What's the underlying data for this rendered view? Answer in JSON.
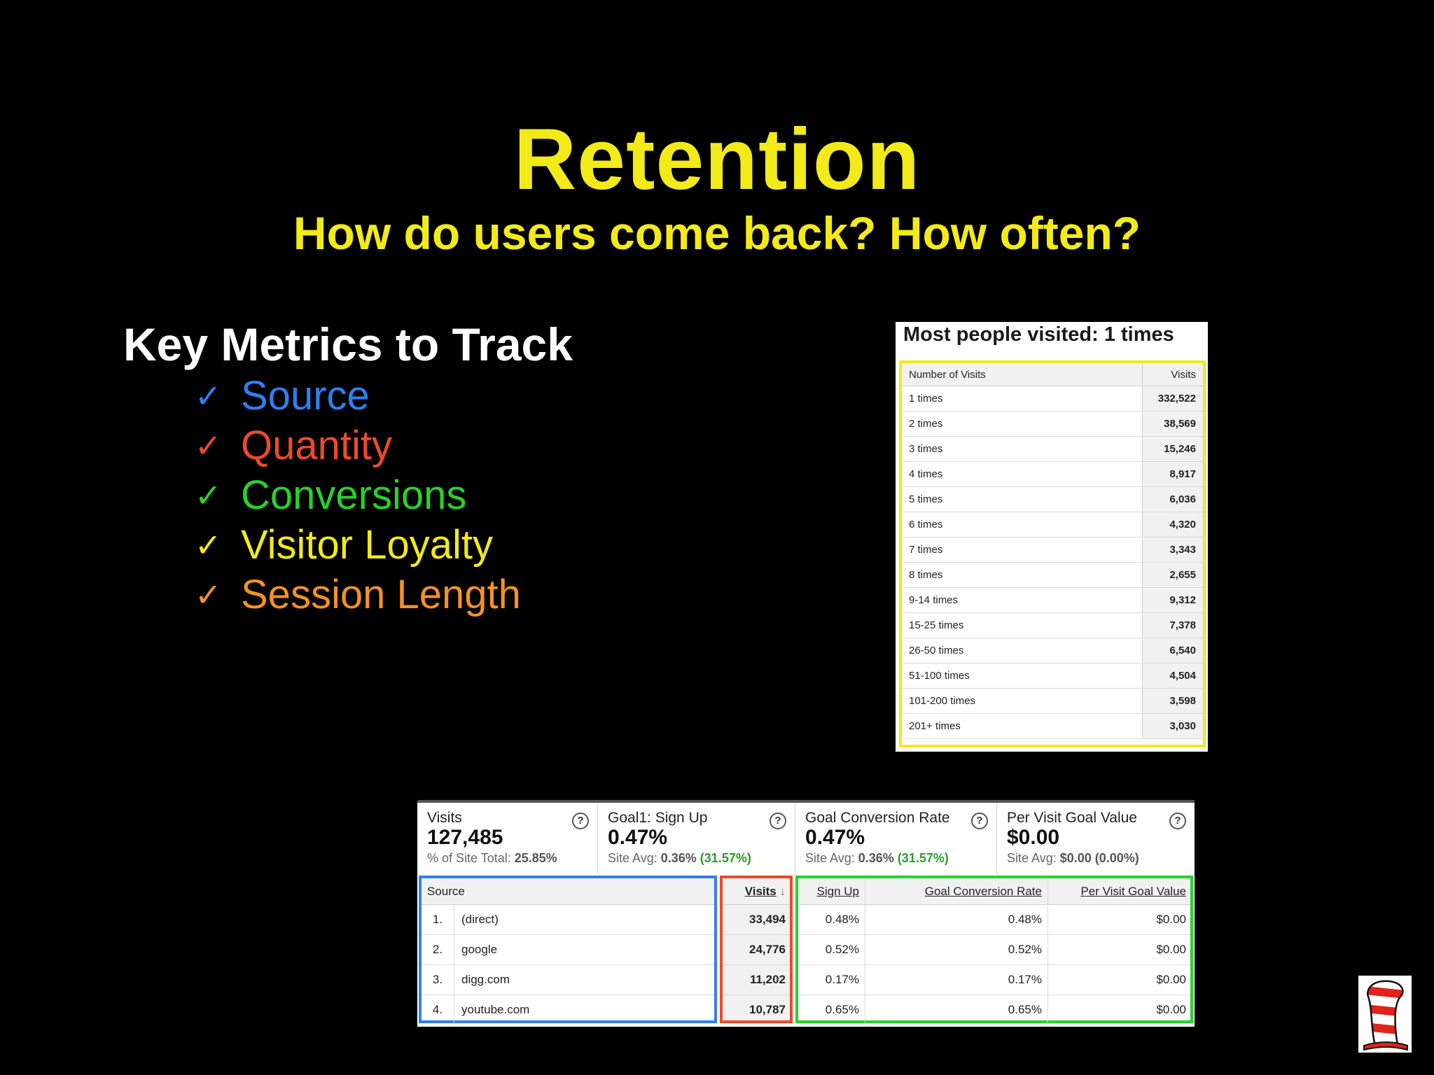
{
  "slide": {
    "title": "Retention",
    "subtitle": "How do users come back? How often?",
    "metrics_heading": "Key Metrics to Track",
    "check_glyph": "✓",
    "metrics": [
      {
        "label": "Source",
        "color": "#2f7ff1"
      },
      {
        "label": "Quantity",
        "color": "#ed4a2a"
      },
      {
        "label": "Conversions",
        "color": "#26d32a"
      },
      {
        "label": "Visitor Loyalty",
        "color": "#f2ea19"
      },
      {
        "label": "Session Length",
        "color": "#f39224"
      }
    ]
  },
  "frequency_panel": {
    "heading": "Most people visited: 1 times",
    "columns": [
      "Number of Visits",
      "Visits"
    ],
    "rows": [
      {
        "label": "1 times",
        "visits": "332,522"
      },
      {
        "label": "2 times",
        "visits": "38,569"
      },
      {
        "label": "3 times",
        "visits": "15,246"
      },
      {
        "label": "4 times",
        "visits": "8,917"
      },
      {
        "label": "5 times",
        "visits": "6,036"
      },
      {
        "label": "6 times",
        "visits": "4,320"
      },
      {
        "label": "7 times",
        "visits": "3,343"
      },
      {
        "label": "8 times",
        "visits": "2,655"
      },
      {
        "label": "9-14 times",
        "visits": "9,312"
      },
      {
        "label": "15-25 times",
        "visits": "7,378"
      },
      {
        "label": "26-50 times",
        "visits": "6,540"
      },
      {
        "label": "51-100 times",
        "visits": "4,504"
      },
      {
        "label": "101-200 times",
        "visits": "3,598"
      },
      {
        "label": "201+ times",
        "visits": "3,030"
      }
    ],
    "highlight_color": "#f2ea19"
  },
  "source_panel": {
    "summary": [
      {
        "label": "Visits",
        "value": "127,485",
        "sub_prefix": "% of Site Total:",
        "sub_value": "25.85%",
        "sub_green": ""
      },
      {
        "label": "Goal1: Sign Up",
        "value": "0.47%",
        "sub_prefix": "Site Avg:",
        "sub_value": "0.36%",
        "sub_green": "(31.57%)"
      },
      {
        "label": "Goal Conversion Rate",
        "value": "0.47%",
        "sub_prefix": "Site Avg:",
        "sub_value": "0.36%",
        "sub_green": "(31.57%)"
      },
      {
        "label": "Per Visit Goal Value",
        "value": "$0.00",
        "sub_prefix": "Site Avg:",
        "sub_value": "$0.00 (0.00%)",
        "sub_green": ""
      }
    ],
    "help_glyph": "?",
    "columns": {
      "source": "Source",
      "visits": "Visits",
      "sort_arrow": "↓",
      "sign_up": "Sign Up",
      "conversion_rate": "Goal Conversion Rate",
      "goal_value": "Per Visit Goal Value"
    },
    "rows": [
      {
        "rank": "1.",
        "source": "(direct)",
        "visits": "33,494",
        "sign_up": "0.48%",
        "rate": "0.48%",
        "value": "$0.00"
      },
      {
        "rank": "2.",
        "source": "google",
        "visits": "24,776",
        "sign_up": "0.52%",
        "rate": "0.52%",
        "value": "$0.00"
      },
      {
        "rank": "3.",
        "source": "digg.com",
        "visits": "11,202",
        "sign_up": "0.17%",
        "rate": "0.17%",
        "value": "$0.00"
      },
      {
        "rank": "4.",
        "source": "youtube.com",
        "visits": "10,787",
        "sign_up": "0.65%",
        "rate": "0.65%",
        "value": "$0.00"
      }
    ],
    "highlight_colors": {
      "source": "#2f7ff1",
      "visits": "#ed4a2a",
      "goals": "#26d32a"
    }
  },
  "logo": {
    "icon": "striped-hat-icon"
  }
}
